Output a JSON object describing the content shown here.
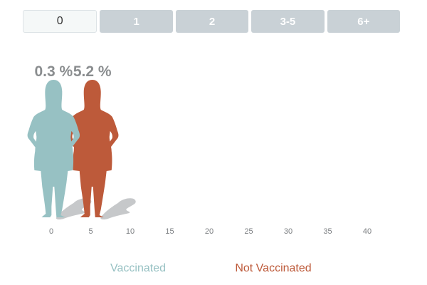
{
  "tabs": {
    "items": [
      {
        "label": "0",
        "active": true
      },
      {
        "label": "1",
        "active": false
      },
      {
        "label": "2",
        "active": false
      },
      {
        "label": "3-5",
        "active": false
      },
      {
        "label": "6+",
        "active": false
      }
    ]
  },
  "chart_data": {
    "type": "bar",
    "xlim": [
      -3,
      41
    ],
    "xticks": [
      "0",
      "5",
      "10",
      "15",
      "20",
      "25",
      "30",
      "35",
      "40"
    ],
    "series": [
      {
        "name": "Vaccinated",
        "value": 0.3,
        "value_label": "0.3 %",
        "color": "#97c1c3"
      },
      {
        "name": "Not Vaccinated",
        "value": 5.2,
        "value_label": "5.2 %",
        "color": "#bd5a3a"
      }
    ],
    "legend_position": "bottom"
  },
  "colors": {
    "vaccinated": "#97c1c3",
    "not_vaccinated": "#bd5a3a",
    "shadow": "#c6c8ca",
    "axis_text": "#7a7d80",
    "tab_inactive": "#c9d1d6"
  }
}
